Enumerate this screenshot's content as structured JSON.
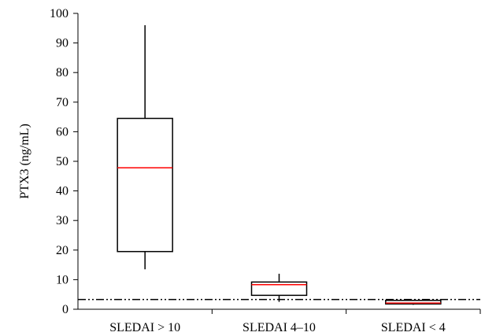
{
  "chart_data": {
    "type": "boxplot",
    "ylabel": "PTX3 (ng/mL)",
    "ylim": [
      0,
      100
    ],
    "yticks": [
      0,
      10,
      20,
      30,
      40,
      50,
      60,
      70,
      80,
      90,
      100
    ],
    "categories": [
      "SLEDAI > 10",
      "SLEDAI 4–10",
      "SLEDAI < 4"
    ],
    "boxes": [
      {
        "category": "SLEDAI > 10",
        "whisker_low": 13.5,
        "q1": 19.5,
        "median": 47.8,
        "q3": 64.5,
        "whisker_high": 96
      },
      {
        "category": "SLEDAI 4–10",
        "whisker_low": 2.5,
        "q1": 4.7,
        "median": 8.3,
        "q3": 9.2,
        "whisker_high": 12
      },
      {
        "category": "SLEDAI < 4",
        "whisker_low": 1.5,
        "q1": 1.8,
        "median": 2.1,
        "q3": 3.0,
        "whisker_high": 3.2
      }
    ],
    "reference_line": {
      "y": 3.3,
      "style": "dash-dot-dot"
    },
    "colors": {
      "box": "#000000",
      "median": "#ff0000",
      "axis": "#000000"
    },
    "grid": false,
    "legend": "none"
  }
}
